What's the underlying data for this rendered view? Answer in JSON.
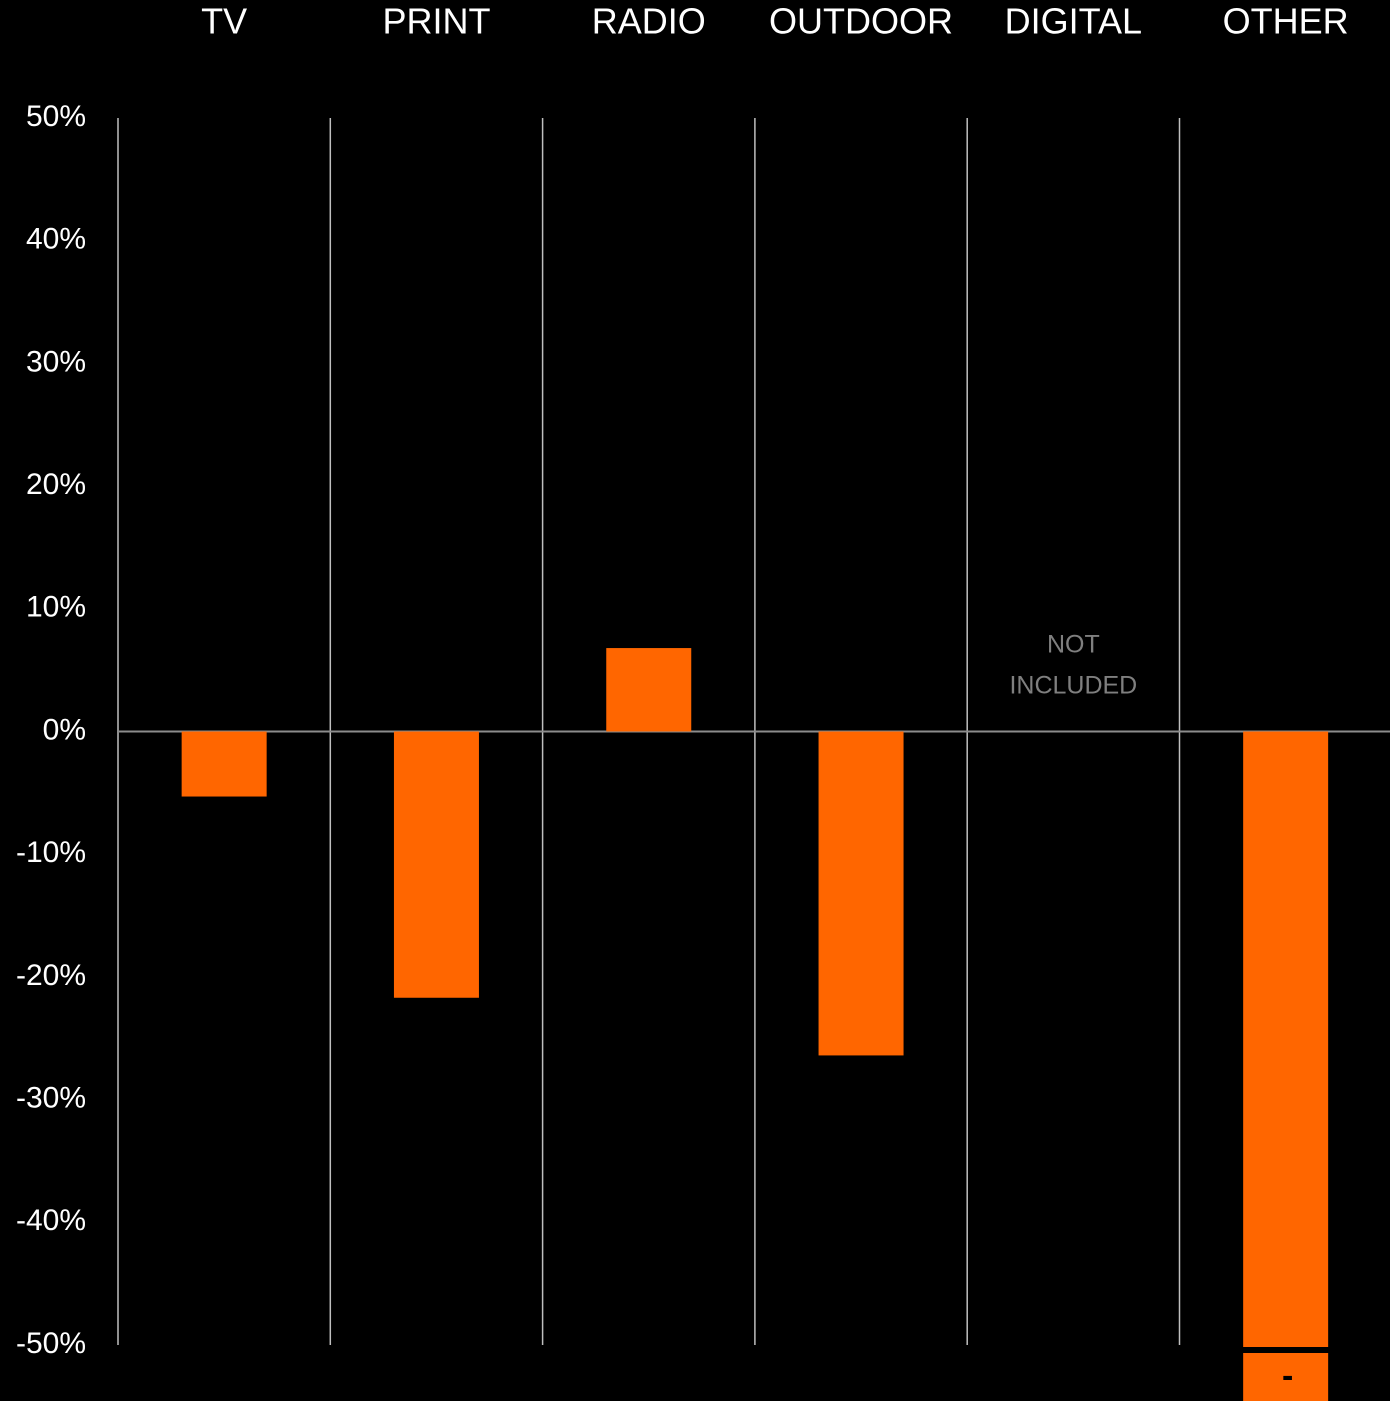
{
  "chart_data": {
    "type": "bar",
    "categories": [
      "TV",
      "PRINT",
      "RADIO",
      "OUTDOOR",
      "DIGITAL",
      "OTHER"
    ],
    "values": [
      -5.3,
      -21.7,
      6.8,
      -26.4,
      null,
      -55
    ],
    "color": "#ff6600",
    "ylim": [
      -50,
      50
    ],
    "yticks": [
      {
        "value": 50,
        "label": "50%"
      },
      {
        "value": 40,
        "label": "40%"
      },
      {
        "value": 30,
        "label": "30%"
      },
      {
        "value": 20,
        "label": "20%"
      },
      {
        "value": 10,
        "label": "10%"
      },
      {
        "value": 0,
        "label": "0%"
      },
      {
        "value": -10,
        "label": "-10%"
      },
      {
        "value": -20,
        "label": "-20%"
      },
      {
        "value": -30,
        "label": "-30%"
      },
      {
        "value": -40,
        "label": "-40%"
      },
      {
        "value": -50,
        "label": "-50%"
      }
    ],
    "annotations": [
      {
        "category": 4,
        "lines": [
          "NOT",
          "INCLUDED"
        ]
      },
      {
        "category": 5,
        "lines": [
          "-"
        ]
      }
    ]
  }
}
